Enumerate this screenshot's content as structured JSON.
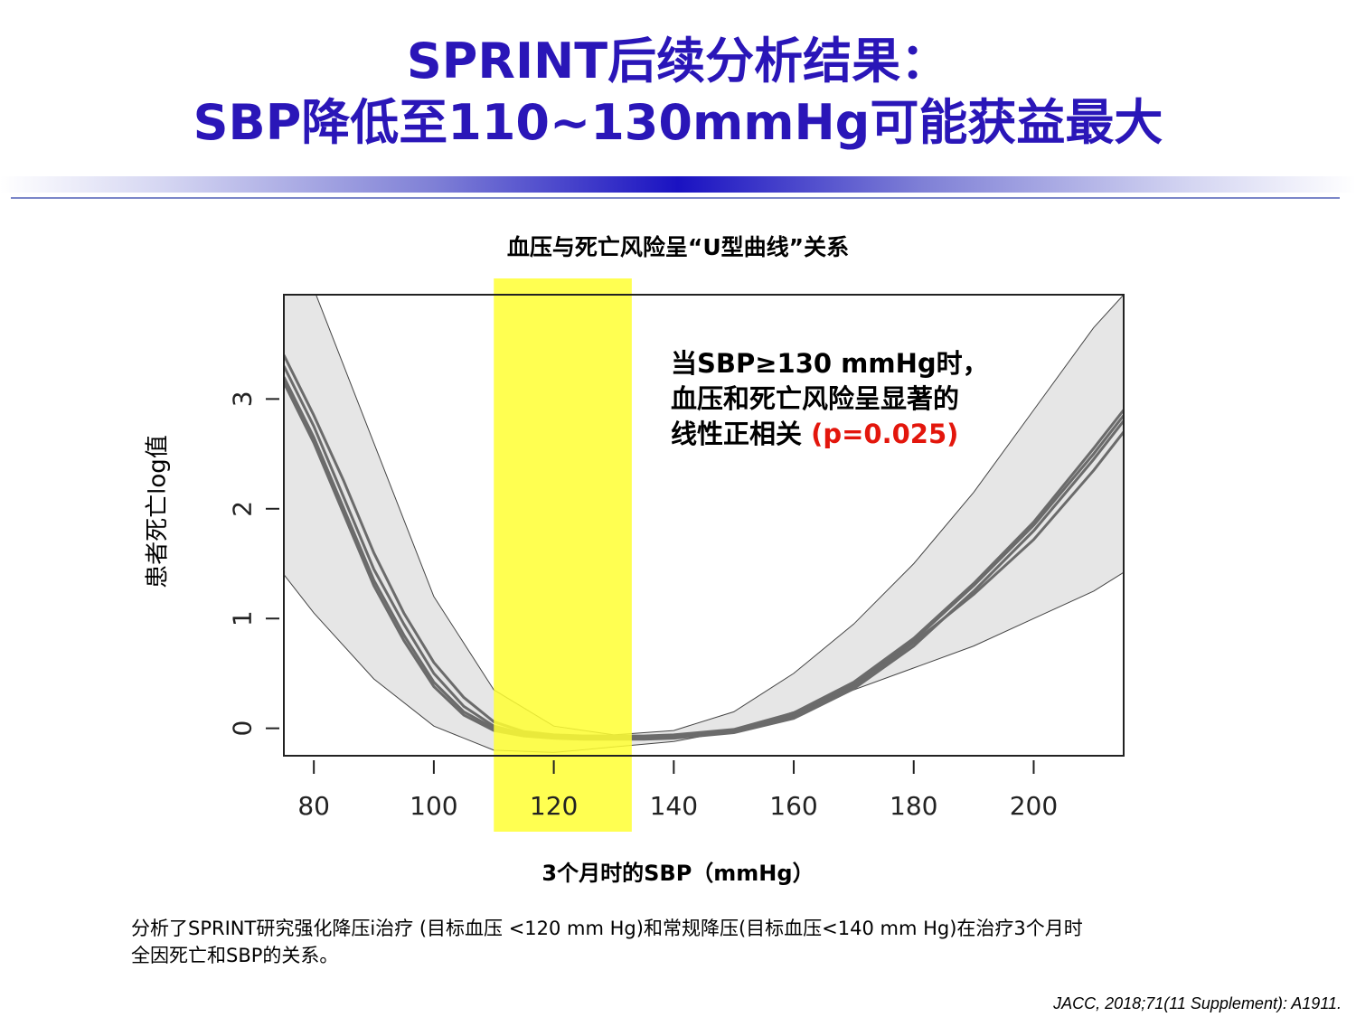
{
  "slide": {
    "title_line1": "SPRINT后续分析结果：",
    "title_line2": "SBP降低至110~130mmHg可能获益最大",
    "accent_color": "#2a16b8"
  },
  "chart_title": "血压与死亡风险呈“U型曲线”关系",
  "y_axis_label": "患者死亡log值",
  "x_axis_label": "3个月时的SBP（mmHg）",
  "annotation": {
    "line1": "当SBP≥130 mmHg时，",
    "line2": "血压和死亡风险呈显著的",
    "line3": "线性正相关 ",
    "pvalue": "(p=0.025)",
    "pvalue_color": "#e3160c"
  },
  "footnote": {
    "line1": "分析了SPRINT研究强化降压i治疗 (目标血压 <120 mm Hg)和常规降压(目标血压<140 mm Hg)在治疗3个月时",
    "line2": "全因死亡和SBP的关系。"
  },
  "reference": "JACC, 2018;71(11 Supplement): A1911.",
  "chart_data": {
    "type": "line",
    "xlim": [
      75,
      215
    ],
    "ylim": [
      -0.25,
      3.95
    ],
    "xticks": [
      "80",
      "100",
      "120",
      "140",
      "160",
      "180",
      "200"
    ],
    "yticks": [
      "0",
      "1",
      "2",
      "3"
    ],
    "highlight_band": {
      "from": 110,
      "to": 133,
      "color": "#ffff33"
    },
    "confidence_band": {
      "x": [
        75,
        80,
        90,
        100,
        110,
        120,
        130,
        140,
        150,
        160,
        170,
        180,
        190,
        200,
        210,
        215
      ],
      "upper": [
        4.6,
        4.0,
        2.6,
        1.2,
        0.35,
        0.02,
        -0.06,
        -0.02,
        0.15,
        0.5,
        0.95,
        1.5,
        2.15,
        2.9,
        3.65,
        3.95
      ],
      "lower": [
        1.4,
        1.05,
        0.45,
        0.02,
        -0.2,
        -0.22,
        -0.17,
        -0.12,
        -0.02,
        0.15,
        0.35,
        0.55,
        0.75,
        1.0,
        1.25,
        1.42
      ]
    },
    "series": [
      {
        "x": [
          75,
          80,
          85,
          90,
          95,
          100,
          105,
          110,
          115,
          120,
          125,
          130,
          135,
          140,
          150,
          160,
          170,
          180,
          190,
          200,
          210,
          215
        ],
        "values": [
          3.3,
          2.75,
          2.1,
          1.45,
          0.95,
          0.5,
          0.2,
          0.02,
          -0.05,
          -0.07,
          -0.08,
          -0.08,
          -0.08,
          -0.07,
          -0.02,
          0.12,
          0.4,
          0.8,
          1.3,
          1.85,
          2.5,
          2.85
        ]
      },
      {
        "x": [
          75,
          80,
          85,
          90,
          95,
          100,
          105,
          110,
          115,
          120,
          125,
          130,
          135,
          140,
          150,
          160,
          170,
          180,
          190,
          200,
          210,
          215
        ],
        "values": [
          3.2,
          2.65,
          2.0,
          1.35,
          0.85,
          0.42,
          0.15,
          0.0,
          -0.06,
          -0.08,
          -0.09,
          -0.09,
          -0.09,
          -0.08,
          -0.03,
          0.1,
          0.38,
          0.78,
          1.22,
          1.72,
          2.35,
          2.7
        ]
      },
      {
        "x": [
          75,
          80,
          85,
          90,
          95,
          100,
          105,
          110,
          115,
          120,
          125,
          130,
          135,
          140,
          150,
          160,
          170,
          180,
          190,
          200,
          210,
          215
        ],
        "values": [
          3.4,
          2.85,
          2.25,
          1.6,
          1.05,
          0.6,
          0.28,
          0.06,
          -0.03,
          -0.06,
          -0.07,
          -0.07,
          -0.07,
          -0.06,
          -0.01,
          0.14,
          0.42,
          0.82,
          1.32,
          1.88,
          2.55,
          2.9
        ]
      },
      {
        "x": [
          75,
          80,
          85,
          90,
          95,
          100,
          105,
          110,
          115,
          120,
          125,
          130,
          135,
          140,
          150,
          160,
          170,
          180,
          190,
          200,
          210,
          215
        ],
        "values": [
          3.15,
          2.6,
          1.95,
          1.3,
          0.8,
          0.38,
          0.12,
          -0.02,
          -0.07,
          -0.09,
          -0.1,
          -0.1,
          -0.1,
          -0.09,
          -0.04,
          0.09,
          0.36,
          0.75,
          1.25,
          1.8,
          2.45,
          2.8
        ]
      }
    ]
  }
}
